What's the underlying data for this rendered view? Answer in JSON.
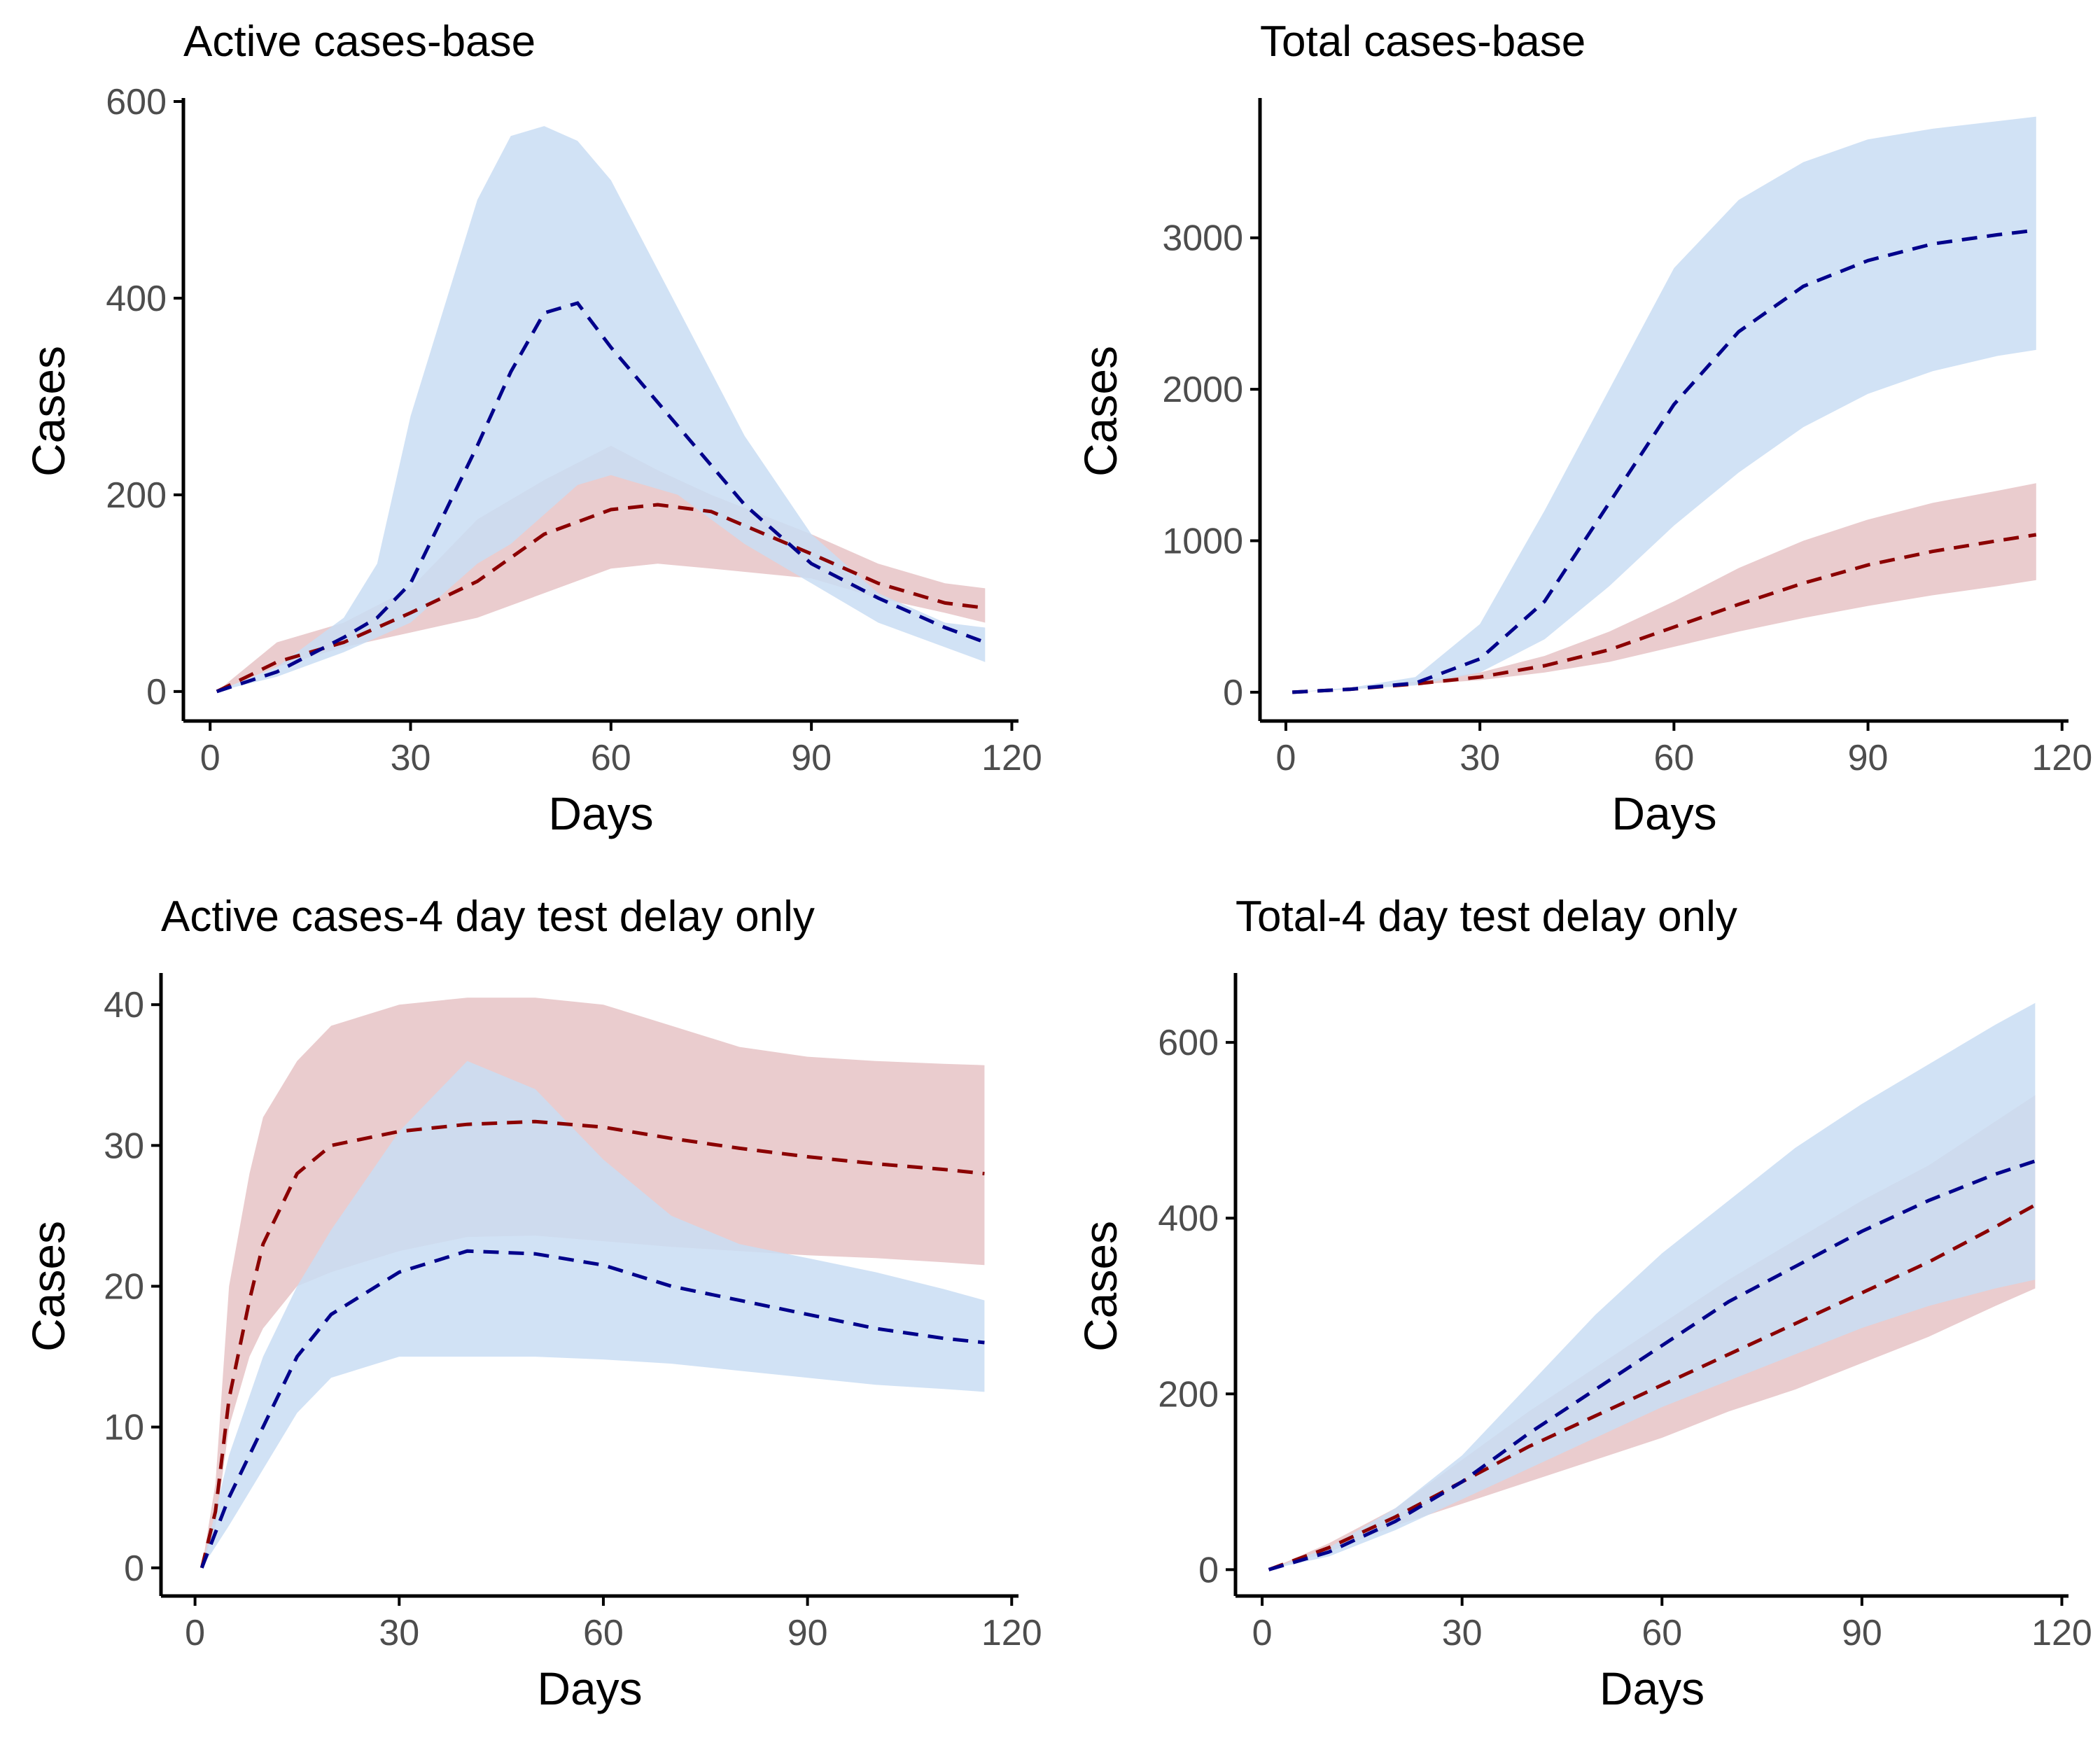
{
  "chart_data": [
    {
      "type": "area",
      "title": "Active cases-base",
      "xlabel": "Days",
      "ylabel": "Cases",
      "xlim": [
        -4,
        121
      ],
      "ylim": [
        -30,
        600
      ],
      "xticks": [
        0,
        30,
        60,
        90,
        120
      ],
      "yticks": [
        0,
        200,
        400,
        600
      ],
      "xtick_labels": [
        "0",
        "30",
        "60",
        "90",
        "120"
      ],
      "ytick_labels": [
        "0",
        "200",
        "400",
        "600"
      ],
      "grid": false,
      "legend": "none",
      "series": [
        {
          "color": "#8b0000",
          "fill_color": "#e6c3c6",
          "x": [
            1,
            10,
            20,
            30,
            40,
            50,
            60,
            67,
            75,
            90,
            100,
            110,
            116
          ],
          "median": [
            0,
            30,
            50,
            80,
            112,
            160,
            185,
            190,
            183,
            140,
            110,
            90,
            85
          ],
          "lower": [
            0,
            25,
            45,
            60,
            75,
            100,
            125,
            130,
            125,
            115,
            95,
            80,
            70
          ],
          "upper": [
            0,
            50,
            70,
            105,
            175,
            215,
            250,
            225,
            200,
            160,
            130,
            110,
            105
          ]
        },
        {
          "color": "#00008b",
          "fill_color": "#c9ddf3",
          "x": [
            1,
            10,
            20,
            25,
            30,
            40,
            45,
            50,
            55,
            60,
            70,
            80,
            90,
            100,
            110,
            116
          ],
          "median": [
            0,
            20,
            55,
            75,
            110,
            250,
            325,
            385,
            395,
            350,
            270,
            190,
            130,
            95,
            65,
            50
          ],
          "lower": [
            0,
            15,
            40,
            55,
            70,
            130,
            150,
            180,
            210,
            220,
            200,
            150,
            110,
            70,
            45,
            30
          ],
          "upper": [
            0,
            25,
            75,
            130,
            280,
            500,
            565,
            575,
            560,
            520,
            390,
            260,
            160,
            100,
            70,
            65
          ]
        }
      ]
    },
    {
      "type": "area",
      "title": "Total cases-base",
      "xlabel": "Days",
      "ylabel": "Cases",
      "xlim": [
        -4,
        121
      ],
      "ylim": [
        -190,
        3900
      ],
      "xticks": [
        0,
        30,
        60,
        90,
        120
      ],
      "yticks": [
        0,
        1000,
        2000,
        3000
      ],
      "xtick_labels": [
        "0",
        "30",
        "60",
        "90",
        "120"
      ],
      "ytick_labels": [
        "0",
        "1000",
        "2000",
        "3000"
      ],
      "grid": false,
      "legend": "none",
      "series": [
        {
          "color": "#8b0000",
          "fill_color": "#e6c3c6",
          "x": [
            1,
            10,
            20,
            30,
            40,
            50,
            60,
            70,
            80,
            90,
            100,
            110,
            116
          ],
          "median": [
            0,
            20,
            55,
            100,
            175,
            280,
            430,
            580,
            720,
            840,
            930,
            1000,
            1040
          ],
          "lower": [
            0,
            20,
            50,
            80,
            130,
            200,
            300,
            400,
            490,
            570,
            640,
            700,
            740
          ],
          "upper": [
            0,
            25,
            70,
            130,
            240,
            400,
            600,
            820,
            1000,
            1140,
            1250,
            1330,
            1380
          ]
        },
        {
          "color": "#00008b",
          "fill_color": "#c9ddf3",
          "x": [
            1,
            10,
            20,
            30,
            40,
            50,
            60,
            70,
            80,
            90,
            100,
            110,
            116
          ],
          "median": [
            0,
            20,
            60,
            220,
            600,
            1250,
            1900,
            2380,
            2680,
            2850,
            2960,
            3020,
            3050
          ],
          "lower": [
            0,
            20,
            45,
            130,
            350,
            700,
            1100,
            1450,
            1750,
            1970,
            2120,
            2220,
            2260
          ],
          "upper": [
            0,
            30,
            100,
            450,
            1200,
            2000,
            2800,
            3250,
            3500,
            3650,
            3720,
            3770,
            3800
          ]
        }
      ]
    },
    {
      "type": "area",
      "title": "Active cases-4 day test delay only",
      "xlabel": "Days",
      "ylabel": "Cases",
      "xlim": [
        -5,
        121
      ],
      "ylim": [
        -2,
        42
      ],
      "xticks": [
        0,
        30,
        60,
        90,
        120
      ],
      "yticks": [
        0,
        10,
        20,
        30,
        40
      ],
      "xtick_labels": [
        "0",
        "30",
        "60",
        "90",
        "120"
      ],
      "ytick_labels": [
        "0",
        "10",
        "20",
        "30",
        "40"
      ],
      "grid": false,
      "legend": "none",
      "series": [
        {
          "color": "#8b0000",
          "fill_color": "#e6c3c6",
          "x": [
            1,
            3,
            5,
            8,
            10,
            15,
            20,
            30,
            40,
            50,
            60,
            70,
            80,
            90,
            100,
            110,
            116
          ],
          "median": [
            0,
            4,
            12,
            19,
            23,
            28,
            30,
            31,
            31.5,
            31.7,
            31.3,
            30.5,
            29.8,
            29.2,
            28.7,
            28.3,
            28
          ],
          "lower": [
            0,
            3,
            10,
            15,
            17,
            20,
            21,
            22.5,
            23.5,
            23.6,
            23.2,
            22.8,
            22.5,
            22.2,
            22,
            21.7,
            21.5
          ],
          "upper": [
            0,
            6,
            20,
            28,
            32,
            36,
            38.5,
            40,
            40.5,
            40.5,
            40,
            38.5,
            37,
            36.3,
            36,
            35.8,
            35.7
          ]
        },
        {
          "color": "#00008b",
          "fill_color": "#c9ddf3",
          "x": [
            1,
            5,
            10,
            15,
            20,
            30,
            40,
            50,
            60,
            70,
            80,
            90,
            100,
            110,
            116
          ],
          "median": [
            0,
            5,
            10,
            15,
            18,
            21,
            22.5,
            22.3,
            21.5,
            20,
            19,
            18,
            17,
            16.3,
            16
          ],
          "lower": [
            0,
            3,
            7,
            11,
            13.5,
            15,
            15,
            15,
            14.8,
            14.5,
            14,
            13.5,
            13,
            12.7,
            12.5
          ],
          "upper": [
            0,
            8,
            15,
            20,
            24,
            31,
            36,
            34,
            29,
            25,
            23,
            22,
            21,
            19.8,
            19
          ]
        }
      ]
    },
    {
      "type": "area",
      "title": "Total-4 day test delay only",
      "xlabel": "Days",
      "ylabel": "Cases",
      "xlim": [
        -4,
        121
      ],
      "ylim": [
        -30,
        675
      ],
      "xticks": [
        0,
        30,
        60,
        90,
        120
      ],
      "yticks": [
        0,
        200,
        400,
        600
      ],
      "xtick_labels": [
        "0",
        "30",
        "60",
        "90",
        "120"
      ],
      "ytick_labels": [
        "0",
        "200",
        "400",
        "600"
      ],
      "grid": false,
      "legend": "none",
      "series": [
        {
          "color": "#8b0000",
          "fill_color": "#e6c3c6",
          "x": [
            1,
            10,
            20,
            30,
            40,
            50,
            60,
            70,
            80,
            90,
            100,
            110,
            116
          ],
          "median": [
            0,
            25,
            60,
            100,
            140,
            175,
            210,
            245,
            280,
            315,
            350,
            390,
            415
          ],
          "lower": [
            0,
            20,
            50,
            75,
            100,
            125,
            150,
            180,
            205,
            235,
            265,
            300,
            320
          ],
          "upper": [
            0,
            30,
            70,
            125,
            180,
            230,
            280,
            330,
            375,
            420,
            460,
            510,
            540
          ]
        },
        {
          "color": "#00008b",
          "fill_color": "#c9ddf3",
          "x": [
            1,
            10,
            20,
            30,
            40,
            50,
            60,
            70,
            80,
            90,
            100,
            110,
            116
          ],
          "median": [
            0,
            20,
            55,
            100,
            155,
            205,
            255,
            305,
            345,
            385,
            420,
            450,
            465
          ],
          "lower": [
            0,
            15,
            45,
            80,
            115,
            150,
            185,
            215,
            245,
            275,
            300,
            320,
            330
          ],
          "upper": [
            0,
            25,
            70,
            130,
            210,
            290,
            360,
            420,
            480,
            530,
            575,
            620,
            645
          ]
        }
      ]
    }
  ]
}
